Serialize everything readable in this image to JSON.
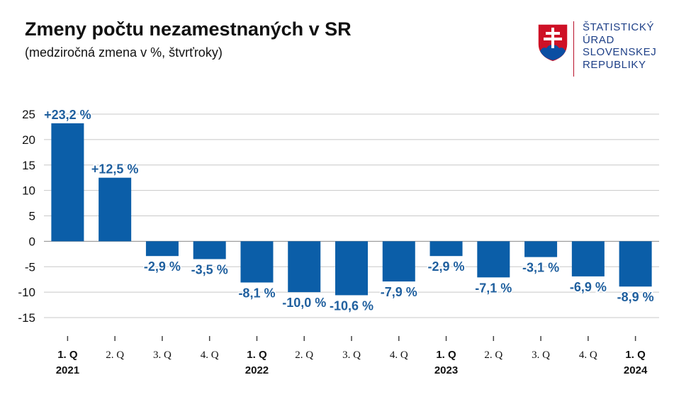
{
  "header": {
    "title": "Zmeny počtu nezamestnaných v SR",
    "subtitle": "(medziročná zmena v %, štvrťroky)"
  },
  "logo": {
    "lines": [
      "ŠTATISTICKÝ",
      "ÚRAD",
      "SLOVENSKEJ",
      "REPUBLIKY"
    ],
    "text_color": "#1d3f87",
    "shield_red": "#ce1126",
    "shield_blue": "#0b4ea2"
  },
  "chart_data": {
    "type": "bar",
    "title": "Zmeny počtu nezamestnaných v SR",
    "subtitle": "(medziročná zmena v %, štvrťroky)",
    "xlabel": "",
    "ylabel": "",
    "ylim": [
      -15,
      25
    ],
    "yticks": [
      "25",
      "20",
      "15",
      "10",
      "5",
      "0",
      "-5",
      "-10",
      "-15"
    ],
    "ytick_values": [
      25,
      20,
      15,
      10,
      5,
      0,
      -5,
      -10,
      -15
    ],
    "grid": true,
    "bar_color": "#0b5ea8",
    "label_color": "#1f5f9e",
    "categories": [
      "1. Q",
      "2. Q",
      "3. Q",
      "4. Q",
      "1. Q",
      "2. Q",
      "3. Q",
      "4. Q",
      "1. Q",
      "2. Q",
      "3. Q",
      "4. Q",
      "1. Q"
    ],
    "category_bold": [
      true,
      false,
      false,
      false,
      true,
      false,
      false,
      false,
      true,
      false,
      false,
      false,
      true
    ],
    "years": [
      "2021",
      "",
      "",
      "",
      "2022",
      "",
      "",
      "",
      "2023",
      "",
      "",
      "",
      "2024"
    ],
    "values": [
      23.2,
      12.5,
      -2.9,
      -3.5,
      -8.1,
      -10.0,
      -10.6,
      -7.9,
      -2.9,
      -7.1,
      -3.1,
      -6.9,
      -8.9
    ],
    "labels": [
      "+23,2 %",
      "+12,5 %",
      "-2,9 %",
      "-3,5 %",
      "-8,1 %",
      "-10,0 %",
      "-10,6 %",
      "-7,9 %",
      "-2,9 %",
      "-7,1 %",
      "-3,1 %",
      "-6,9 %",
      "-8,9 %"
    ]
  }
}
